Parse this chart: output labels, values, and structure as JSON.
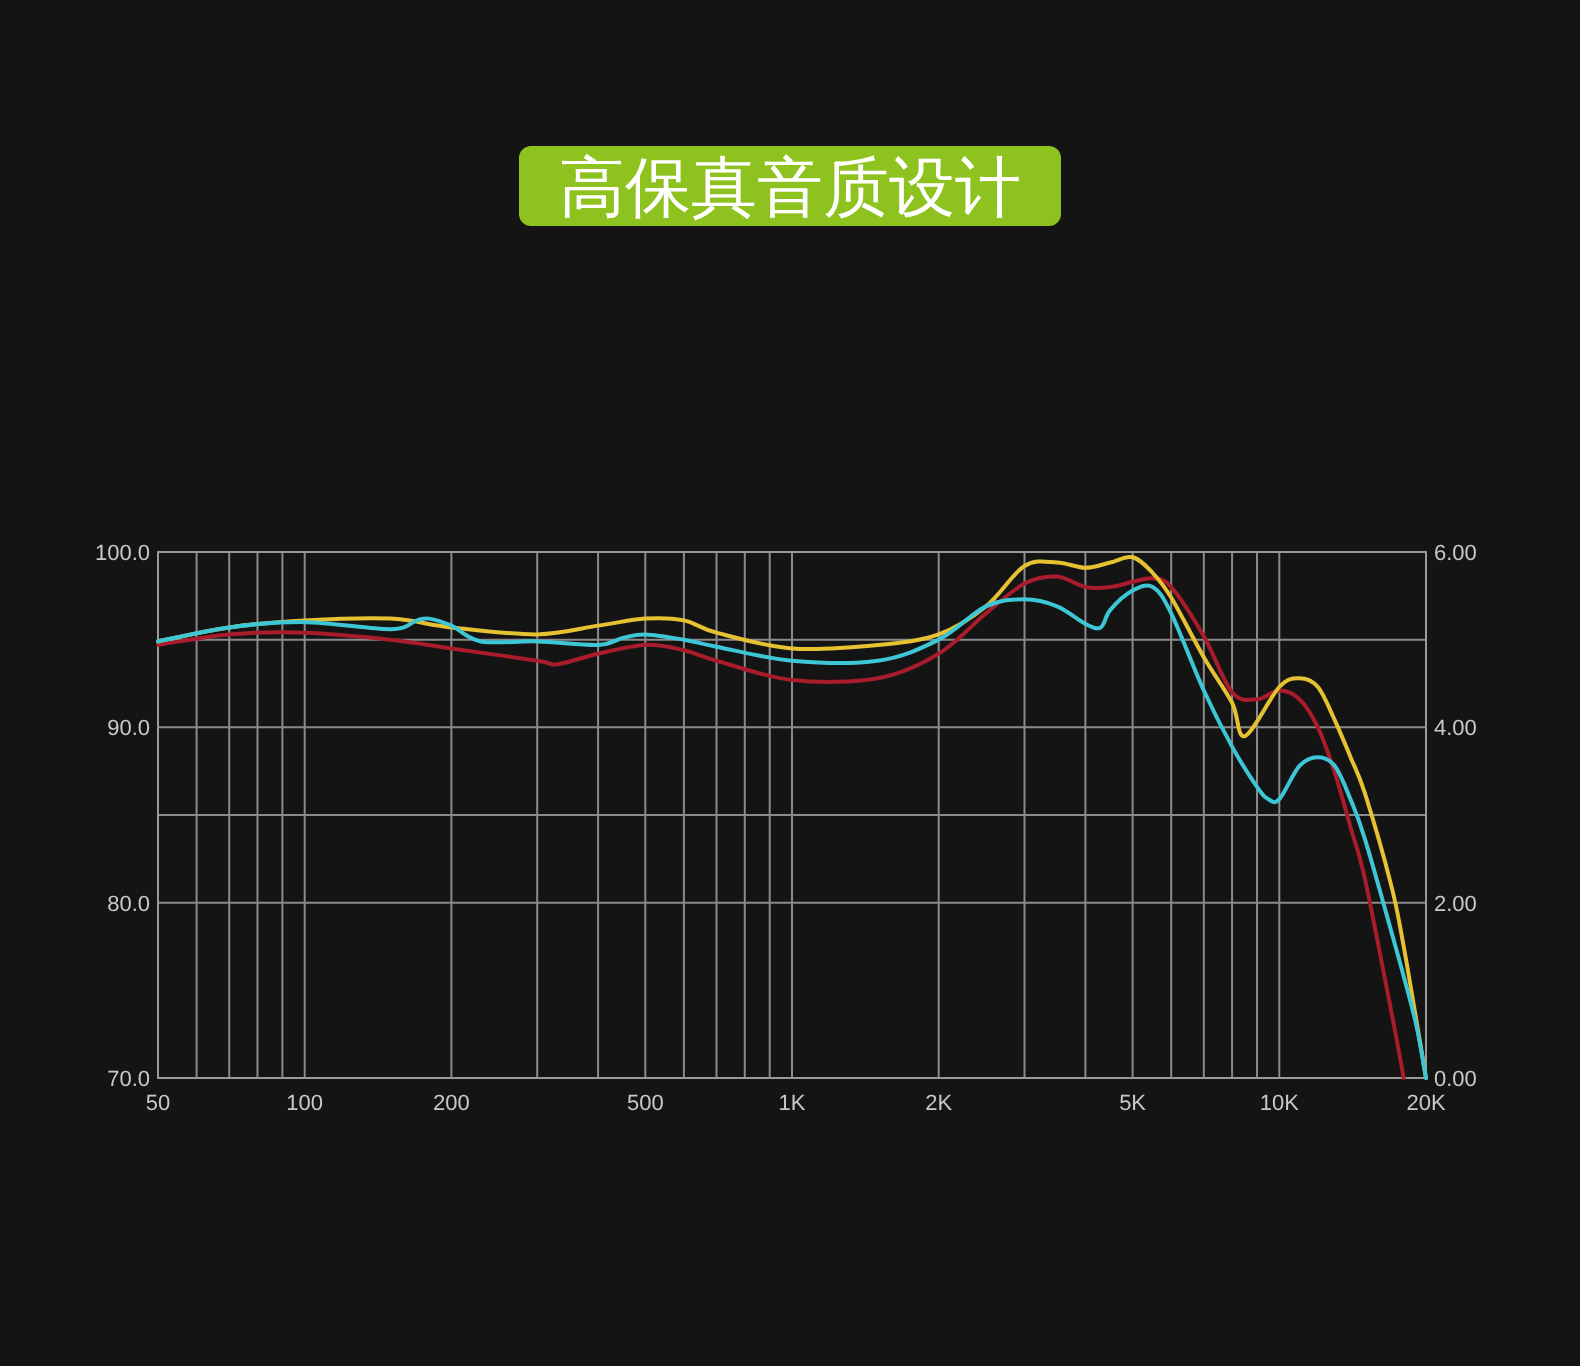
{
  "chart_data": {
    "type": "line",
    "title": "高保真音质设计",
    "log": "x",
    "grid": true,
    "xlim": [
      50,
      20000
    ],
    "ylim": [
      70,
      100
    ],
    "y2lim": [
      0,
      6
    ],
    "xticks": [
      {
        "value": 50,
        "label": "50"
      },
      {
        "value": 60,
        "label": null
      },
      {
        "value": 70,
        "label": null
      },
      {
        "value": 80,
        "label": null
      },
      {
        "value": 90,
        "label": null
      },
      {
        "value": 100,
        "label": "100"
      },
      {
        "value": 200,
        "label": "200"
      },
      {
        "value": 300,
        "label": null
      },
      {
        "value": 400,
        "label": null
      },
      {
        "value": 500,
        "label": "500"
      },
      {
        "value": 600,
        "label": null
      },
      {
        "value": 700,
        "label": null
      },
      {
        "value": 800,
        "label": null
      },
      {
        "value": 900,
        "label": null
      },
      {
        "value": 1000,
        "label": "1K"
      },
      {
        "value": 2000,
        "label": "2K"
      },
      {
        "value": 3000,
        "label": null
      },
      {
        "value": 4000,
        "label": null
      },
      {
        "value": 5000,
        "label": "5K"
      },
      {
        "value": 6000,
        "label": null
      },
      {
        "value": 7000,
        "label": null
      },
      {
        "value": 8000,
        "label": null
      },
      {
        "value": 9000,
        "label": null
      },
      {
        "value": 10000,
        "label": "10K"
      },
      {
        "value": 20000,
        "label": "20K"
      }
    ],
    "yticks": [
      {
        "value": 70,
        "label": "70.0"
      },
      {
        "value": 80,
        "label": "80.0"
      },
      {
        "value": 85,
        "label": null
      },
      {
        "value": 90,
        "label": "90.0"
      },
      {
        "value": 95,
        "label": null
      },
      {
        "value": 100,
        "label": "100.0"
      }
    ],
    "y2ticks": [
      {
        "value": 0,
        "label": "0.00"
      },
      {
        "value": 2,
        "label": "2.00"
      },
      {
        "value": 4,
        "label": "4.00"
      },
      {
        "value": 6,
        "label": "6.00"
      }
    ],
    "series": [
      {
        "color": "#a81c2c",
        "x": [
          50,
          70,
          100,
          150,
          200,
          300,
          330,
          400,
          500,
          600,
          700,
          1000,
          1500,
          2000,
          2500,
          3000,
          3500,
          4000,
          4500,
          5000,
          5500,
          6000,
          7000,
          8000,
          9000,
          10000,
          11000,
          12000,
          13000,
          14000,
          15000,
          17000,
          18000
        ],
        "values": [
          94.7,
          95.3,
          95.4,
          95.0,
          94.5,
          93.8,
          93.6,
          94.2,
          94.7,
          94.4,
          93.8,
          92.7,
          92.8,
          94.2,
          96.5,
          98.2,
          98.6,
          98.0,
          98.0,
          98.3,
          98.5,
          98.0,
          95.2,
          92.0,
          91.6,
          92.1,
          91.6,
          90.0,
          87.4,
          84.3,
          81.3,
          73.7,
          70
        ]
      },
      {
        "color": "#e6c232",
        "x": [
          50,
          70,
          100,
          150,
          200,
          300,
          400,
          500,
          600,
          700,
          1000,
          1500,
          2000,
          2500,
          3000,
          3500,
          4000,
          4500,
          5000,
          5500,
          6000,
          7000,
          8000,
          8500,
          10000,
          11000,
          12000,
          13000,
          14000,
          15000,
          17000,
          18000,
          19000,
          20000
        ],
        "values": [
          94.9,
          95.7,
          96.1,
          96.2,
          95.7,
          95.3,
          95.8,
          96.2,
          96.1,
          95.4,
          94.5,
          94.7,
          95.3,
          96.9,
          99.2,
          99.4,
          99.1,
          99.4,
          99.7,
          98.8,
          97.4,
          94.0,
          91.4,
          89.5,
          92.3,
          92.8,
          92.3,
          90.4,
          88.3,
          86.2,
          80.9,
          77.5,
          73.7,
          70
        ]
      },
      {
        "color": "#3cc6d6",
        "x": [
          50,
          70,
          100,
          150,
          170,
          180,
          200,
          230,
          300,
          400,
          450,
          500,
          600,
          700,
          1000,
          1500,
          2000,
          2500,
          3000,
          3500,
          4000,
          4300,
          4500,
          5000,
          5500,
          6000,
          7000,
          8000,
          9000,
          9500,
          10000,
          11000,
          12000,
          13000,
          14000,
          15000,
          17000,
          19000,
          20000
        ],
        "values": [
          94.9,
          95.7,
          96.0,
          95.6,
          96.1,
          96.2,
          95.8,
          94.9,
          94.9,
          94.7,
          95.1,
          95.3,
          95.0,
          94.6,
          93.8,
          93.8,
          95.0,
          96.9,
          97.3,
          96.9,
          95.9,
          95.7,
          96.7,
          97.8,
          98.0,
          96.5,
          92.1,
          88.9,
          86.6,
          85.9,
          85.9,
          87.8,
          88.3,
          87.8,
          85.9,
          83.6,
          78.3,
          73.3,
          70
        ]
      }
    ]
  }
}
